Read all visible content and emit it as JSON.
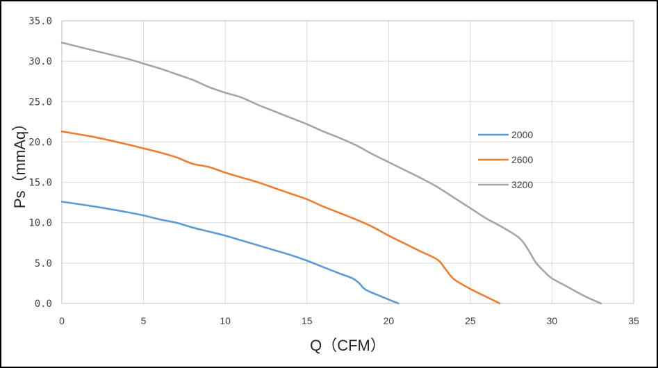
{
  "chart_data": {
    "type": "line",
    "title": "",
    "xlabel": "Q（CFM）",
    "ylabel": "Ps（mmAq）",
    "xlim": [
      0,
      35
    ],
    "ylim": [
      0,
      35
    ],
    "x_ticks": [
      "0",
      "5",
      "10",
      "15",
      "20",
      "25",
      "30",
      "35"
    ],
    "y_ticks": [
      "0.0",
      "5.0",
      "10.0",
      "15.0",
      "20.0",
      "25.0",
      "30.0",
      "35.0"
    ],
    "grid": true,
    "legend_position": "right",
    "series": [
      {
        "name": "2000",
        "color": "#5b9bd5",
        "x": [
          0,
          2,
          4,
          5,
          6,
          7,
          8,
          9,
          10,
          11,
          12,
          13,
          14,
          15,
          16,
          17,
          17.8,
          18.2,
          18.6,
          19.5,
          20.6
        ],
        "y": [
          12.6,
          12.0,
          11.3,
          10.9,
          10.4,
          10.0,
          9.4,
          8.9,
          8.4,
          7.8,
          7.2,
          6.6,
          6.0,
          5.3,
          4.5,
          3.7,
          3.1,
          2.5,
          1.7,
          0.9,
          0.0
        ]
      },
      {
        "name": "2600",
        "color": "#ed7d31",
        "x": [
          0,
          2,
          4,
          5,
          6,
          7,
          8,
          9,
          10,
          11,
          12,
          13,
          14,
          15,
          16,
          17,
          18,
          19,
          20,
          21,
          22,
          23,
          23.5,
          24,
          25,
          26,
          26.8
        ],
        "y": [
          21.3,
          20.6,
          19.7,
          19.2,
          18.7,
          18.1,
          17.3,
          16.9,
          16.2,
          15.6,
          15.0,
          14.3,
          13.6,
          12.9,
          12.0,
          11.2,
          10.4,
          9.5,
          8.4,
          7.4,
          6.4,
          5.4,
          4.2,
          3.0,
          1.8,
          0.8,
          0.0
        ]
      },
      {
        "name": "3200",
        "color": "#a5a5a5",
        "x": [
          0,
          2,
          4,
          5,
          6,
          7,
          8,
          9,
          10,
          11,
          12,
          13,
          14,
          15,
          16,
          17,
          18,
          19,
          20,
          21,
          22,
          23,
          24,
          25,
          26,
          27,
          28,
          28.5,
          29,
          29.5,
          30,
          31,
          32,
          33
        ],
        "y": [
          32.3,
          31.3,
          30.3,
          29.7,
          29.1,
          28.4,
          27.7,
          26.8,
          26.1,
          25.5,
          24.6,
          23.8,
          23.0,
          22.2,
          21.3,
          20.5,
          19.6,
          18.5,
          17.5,
          16.5,
          15.5,
          14.4,
          13.1,
          11.8,
          10.5,
          9.4,
          8.1,
          6.8,
          5.1,
          4.0,
          3.1,
          2.0,
          0.9,
          0.0
        ]
      }
    ]
  }
}
